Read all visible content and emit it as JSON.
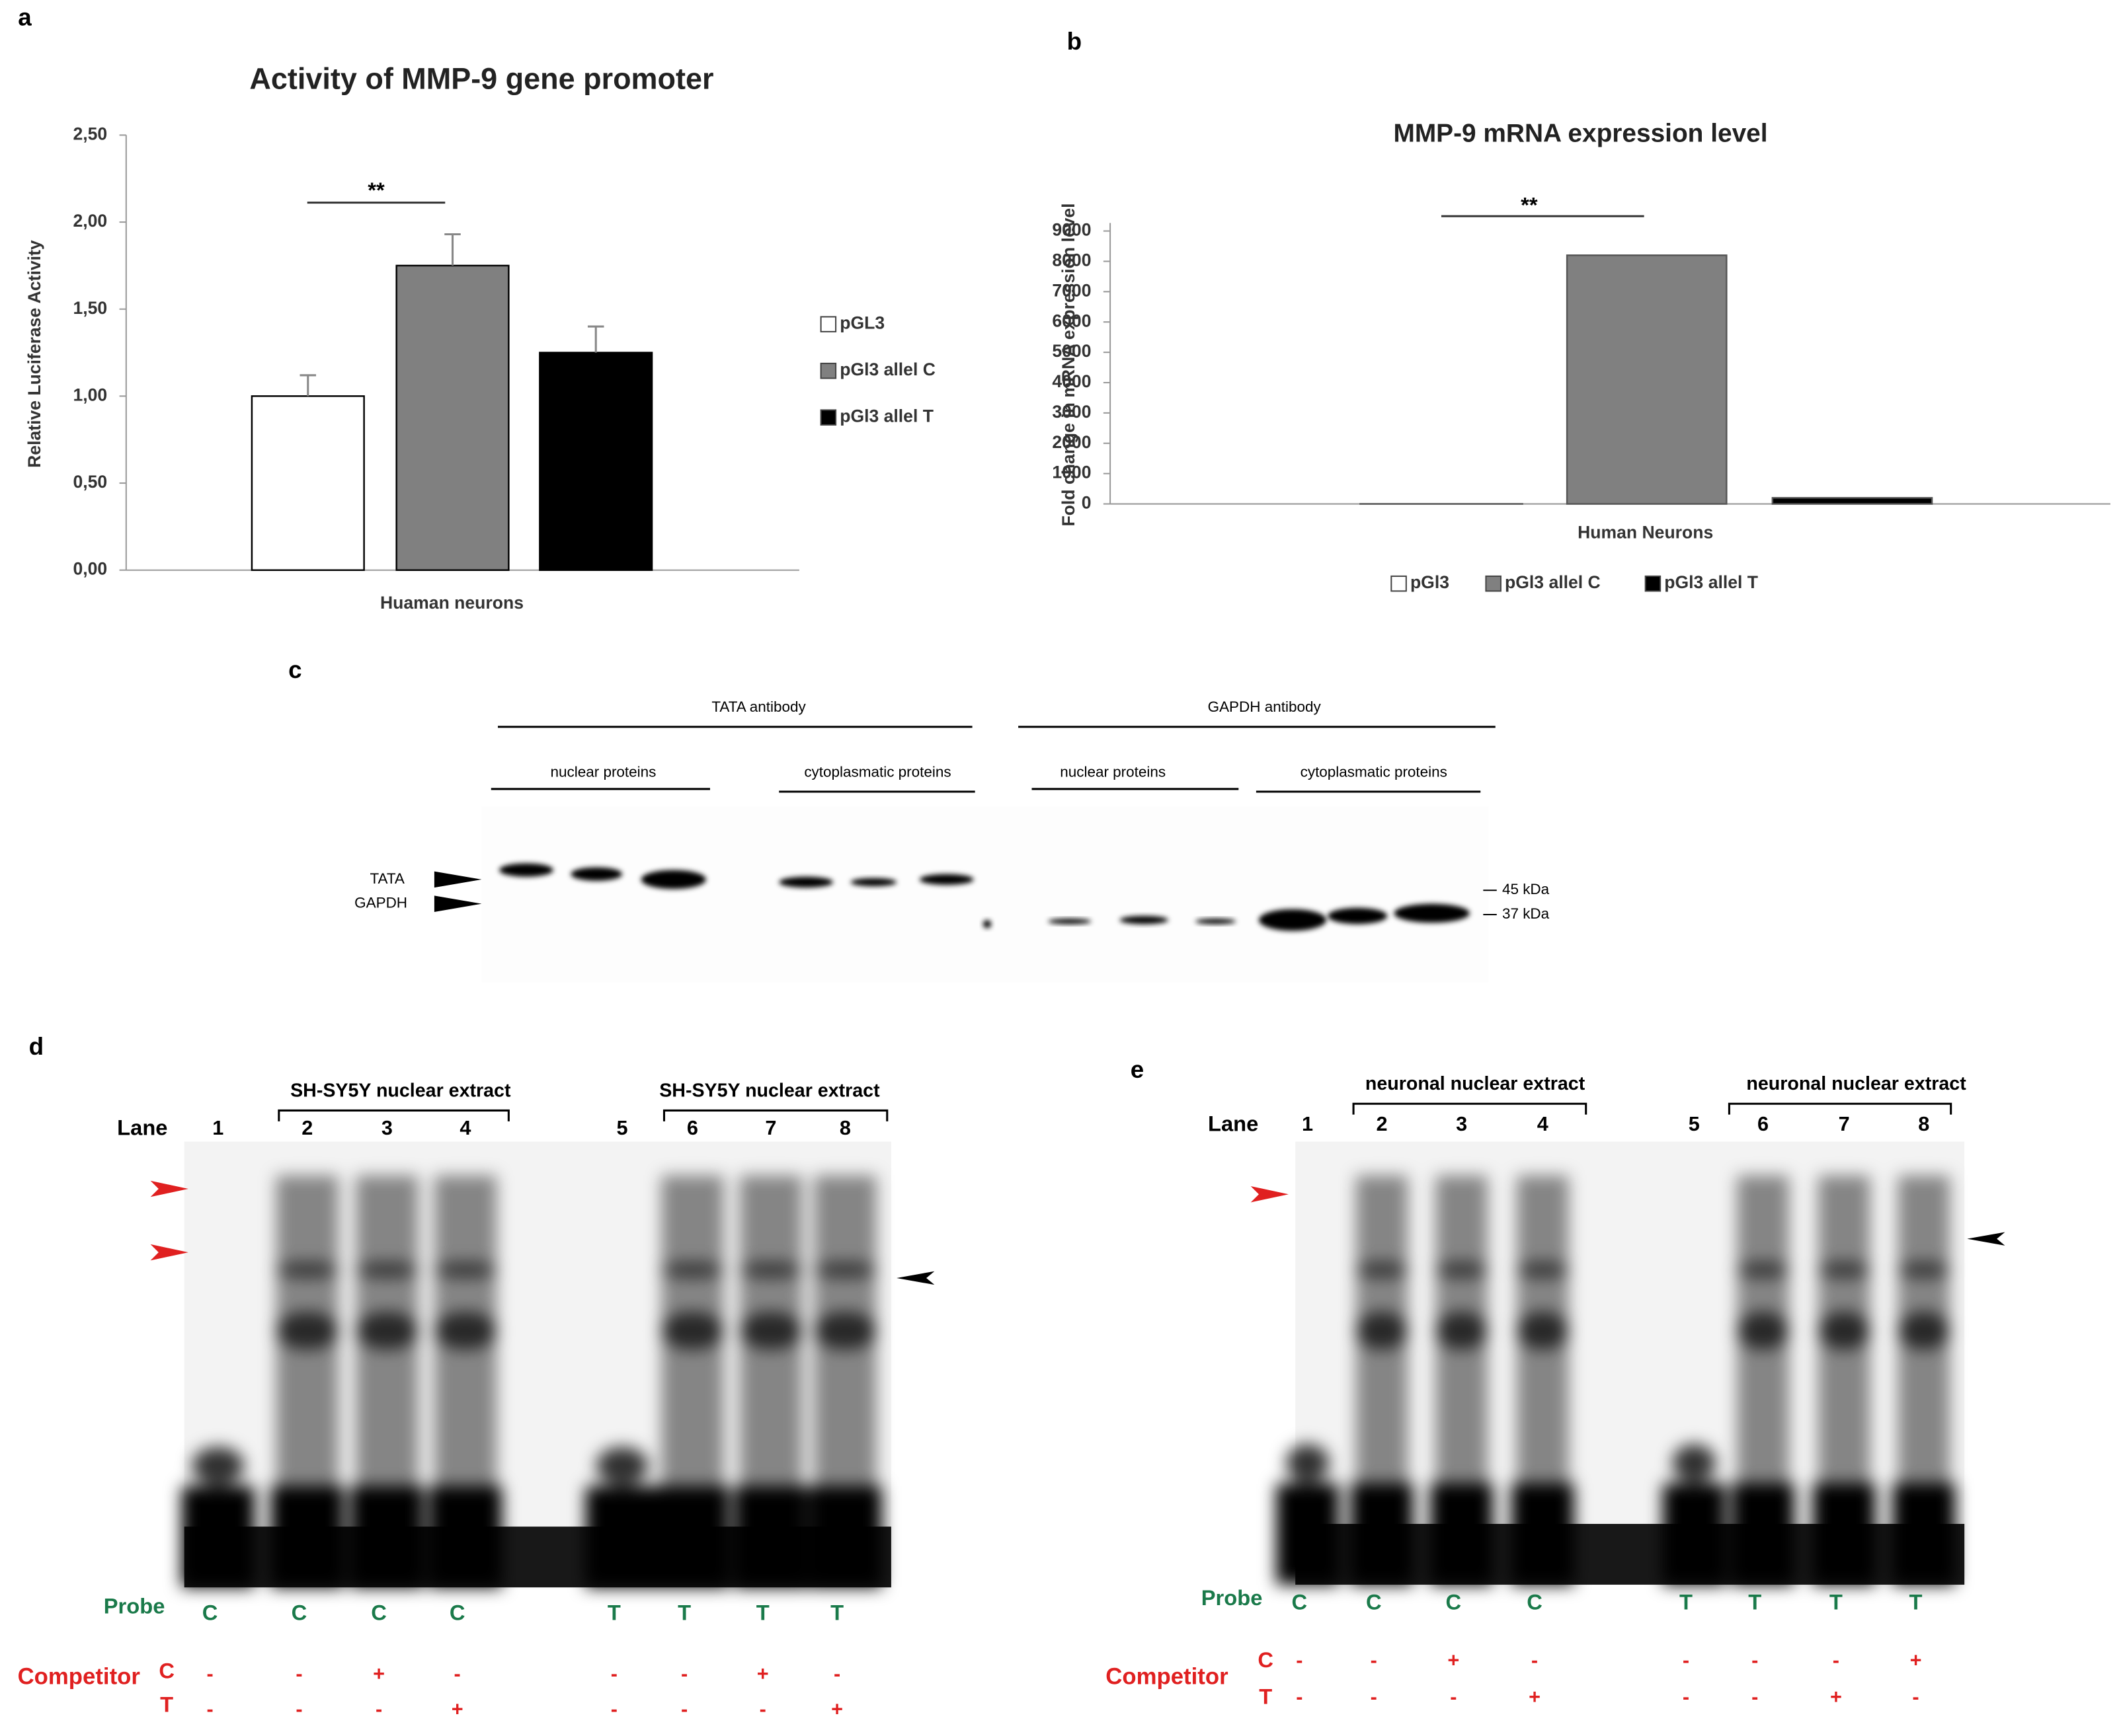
{
  "chart_data": [
    {
      "type": "bar",
      "label": "a",
      "title": "Activity of MMP-9 gene promoter",
      "y_label": "Relative Luciferase Activity",
      "x_label": "Huaman neurons",
      "categories": [
        "Huaman neurons"
      ],
      "series": [
        {
          "name": "pGL3",
          "color": "#ffffff",
          "values": [
            1.0
          ],
          "errors": [
            0.12
          ]
        },
        {
          "name": "pGl3 allel C",
          "color": "#808080",
          "values": [
            1.75
          ],
          "errors": [
            0.18
          ]
        },
        {
          "name": "pGl3 allel T",
          "color": "#000000",
          "values": [
            1.25
          ],
          "errors": [
            0.15
          ]
        }
      ],
      "ylim": [
        0,
        2.5
      ],
      "yticks": [
        {
          "value": 0,
          "label": "0,00"
        },
        {
          "value": 0.5,
          "label": "0,50"
        },
        {
          "value": 1,
          "label": "1,00"
        },
        {
          "value": 1.5,
          "label": "1,50"
        },
        {
          "value": 2,
          "label": "2,00"
        },
        {
          "value": 2.5,
          "label": "2,50"
        }
      ],
      "annotation": "**",
      "legend": "right"
    },
    {
      "type": "bar",
      "label": "b",
      "title": "MMP-9 mRNA expression level",
      "y_label": "Fold change in mRNA expression level",
      "x_label": "Human Neurons",
      "categories": [
        "Human Neurons"
      ],
      "series": [
        {
          "name": "pGl3",
          "color": "#ffffff",
          "values": [
            1
          ],
          "errors": [
            0
          ]
        },
        {
          "name": "pGl3 allel C",
          "color": "#808080",
          "values": [
            8200
          ],
          "errors": [
            0
          ]
        },
        {
          "name": "pGl3 allel T",
          "color": "#000000",
          "values": [
            200
          ],
          "errors": [
            0
          ]
        }
      ],
      "ylim": [
        0,
        9000
      ],
      "yticks": [
        0,
        1000,
        2000,
        3000,
        4000,
        5000,
        6000,
        7000,
        8000,
        9000
      ],
      "annotation": "**",
      "legend": "bottom"
    }
  ],
  "panel_c": {
    "label": "c",
    "groups": [
      {
        "antibody": "TATA antibody",
        "fractions": [
          "nuclear  proteins",
          "cytoplasmatic  proteins"
        ]
      },
      {
        "antibody": "GAPDH antibody",
        "fractions": [
          "nuclear  proteins",
          "cytoplasmatic  proteins"
        ]
      }
    ],
    "bands": [
      "TATA",
      "GAPDH"
    ],
    "markers": [
      "45 kDa",
      "37 kDa"
    ]
  },
  "panel_d": {
    "label": "d",
    "lane_title": "Lane",
    "extracts": [
      "SH-SY5Y nuclear extract",
      "SH-SY5Y nuclear extract"
    ],
    "lanes": [
      1,
      2,
      3,
      4,
      5,
      6,
      7,
      8
    ],
    "probe_title": "Probe",
    "probes": [
      "C",
      "C",
      "C",
      "C",
      "T",
      "T",
      "T",
      "T"
    ],
    "competitor_title": "Competitor",
    "competitor_rows": [
      {
        "name": "C",
        "marks": [
          "-",
          "-",
          "+",
          "-",
          "-",
          "-",
          "+",
          "-"
        ]
      },
      {
        "name": "T",
        "marks": [
          "-",
          "-",
          "-",
          "+",
          "-",
          "-",
          "-",
          "+"
        ]
      }
    ]
  },
  "panel_e": {
    "label": "e",
    "lane_title": "Lane",
    "extracts": [
      "neuronal nuclear extract",
      "neuronal nuclear extract"
    ],
    "lanes": [
      1,
      2,
      3,
      4,
      5,
      6,
      7,
      8
    ],
    "probe_title": "Probe",
    "probes": [
      "C",
      "C",
      "C",
      "C",
      "T",
      "T",
      "T",
      "T"
    ],
    "competitor_title": "Competitor",
    "competitor_rows": [
      {
        "name": "C",
        "marks": [
          "-",
          "-",
          "+",
          "-",
          "-",
          "-",
          "-",
          "+"
        ]
      },
      {
        "name": "T",
        "marks": [
          "-",
          "-",
          "-",
          "+",
          "-",
          "-",
          "+",
          "-"
        ]
      }
    ]
  }
}
